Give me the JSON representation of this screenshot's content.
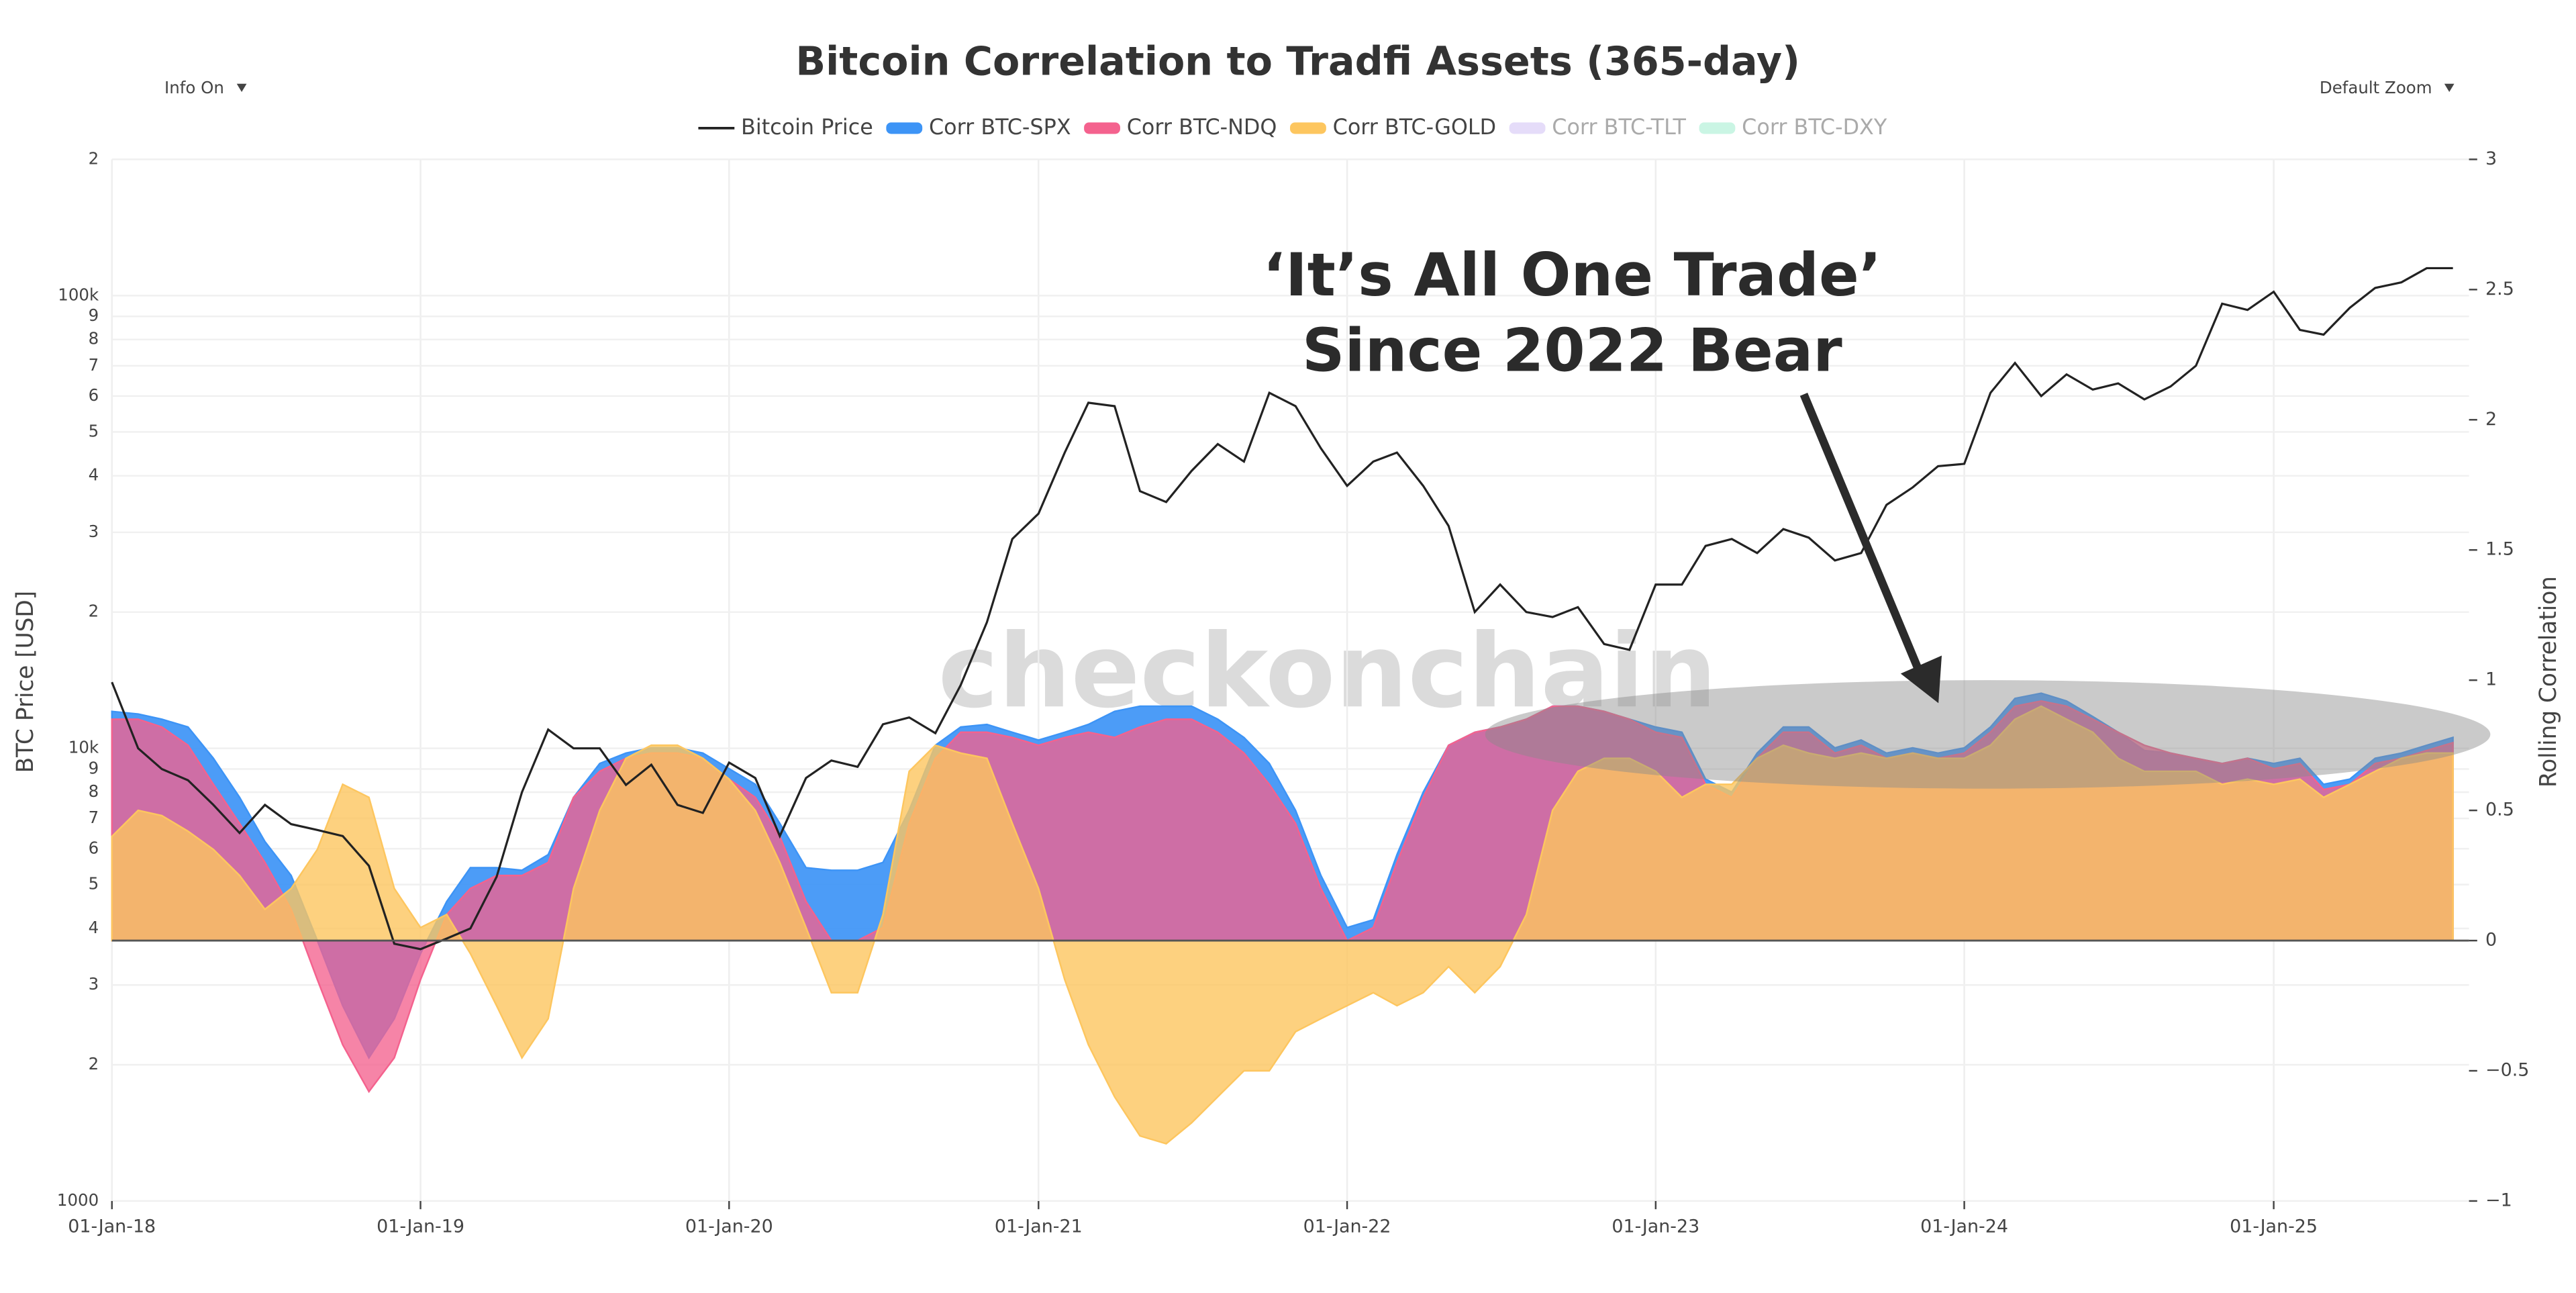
{
  "chart_data": {
    "type": "line-area",
    "title": "Bitcoin Correlation to Tradfi Assets (365-day)",
    "buttons": [
      "Info On",
      "Default Zoom"
    ],
    "y_label": "BTC Price [USD]",
    "y2_label": "Rolling Correlation",
    "watermark": "checkonchain",
    "annotation": [
      "‘It’s All One Trade’",
      "Since 2022 Bear"
    ],
    "ylog": true,
    "grid": true,
    "legend": "top",
    "xlim": [
      "2018-01-01",
      "2025-08-20"
    ],
    "xticks": [
      {
        "value": "2018-01-01",
        "label": "01-Jan-18"
      },
      {
        "value": "2019-01-01",
        "label": "01-Jan-19"
      },
      {
        "value": "2020-01-01",
        "label": "01-Jan-20"
      },
      {
        "value": "2021-01-01",
        "label": "01-Jan-21"
      },
      {
        "value": "2022-01-01",
        "label": "01-Jan-22"
      },
      {
        "value": "2023-01-01",
        "label": "01-Jan-23"
      },
      {
        "value": "2024-01-01",
        "label": "01-Jan-24"
      },
      {
        "value": "2025-01-01",
        "label": "01-Jan-25"
      }
    ],
    "ylim": [
      1000,
      200000
    ],
    "yticks": [
      1000,
      {
        "value": 2000,
        "label": "2"
      },
      {
        "value": 3000,
        "label": "3"
      },
      {
        "value": 4000,
        "label": "4"
      },
      {
        "value": 5000,
        "label": "5"
      },
      {
        "value": 6000,
        "label": "6"
      },
      {
        "value": 7000,
        "label": "7"
      },
      {
        "value": 8000,
        "label": "8"
      },
      {
        "value": 9000,
        "label": "9"
      },
      {
        "value": 10000,
        "label": "10k"
      },
      {
        "value": 20000,
        "label": "2"
      },
      {
        "value": 30000,
        "label": "3"
      },
      {
        "value": 40000,
        "label": "4"
      },
      {
        "value": 50000,
        "label": "5"
      },
      {
        "value": 60000,
        "label": "6"
      },
      {
        "value": 70000,
        "label": "7"
      },
      {
        "value": 80000,
        "label": "8"
      },
      {
        "value": 90000,
        "label": "9"
      },
      {
        "value": 100000,
        "label": "100k"
      },
      {
        "value": 200000,
        "label": "2"
      }
    ],
    "y2lim": [
      -1,
      3
    ],
    "y2ticks": [
      {
        "value": -1,
        "label": "−1"
      },
      {
        "value": -0.5,
        "label": "−0.5"
      },
      0,
      0.5,
      1,
      1.5,
      2,
      2.5,
      3
    ],
    "x": [
      "2018-01-01",
      "2018-02-01",
      "2018-03-01",
      "2018-04-01",
      "2018-05-01",
      "2018-06-01",
      "2018-07-01",
      "2018-08-01",
      "2018-09-01",
      "2018-10-01",
      "2018-11-01",
      "2018-12-01",
      "2019-01-01",
      "2019-02-01",
      "2019-03-01",
      "2019-04-01",
      "2019-05-01",
      "2019-06-01",
      "2019-07-01",
      "2019-08-01",
      "2019-09-01",
      "2019-10-01",
      "2019-11-01",
      "2019-12-01",
      "2020-01-01",
      "2020-02-01",
      "2020-03-01",
      "2020-04-01",
      "2020-05-01",
      "2020-06-01",
      "2020-07-01",
      "2020-08-01",
      "2020-09-01",
      "2020-10-01",
      "2020-11-01",
      "2020-12-01",
      "2021-01-01",
      "2021-02-01",
      "2021-03-01",
      "2021-04-01",
      "2021-05-01",
      "2021-06-01",
      "2021-07-01",
      "2021-08-01",
      "2021-09-01",
      "2021-10-01",
      "2021-11-01",
      "2021-12-01",
      "2022-01-01",
      "2022-02-01",
      "2022-03-01",
      "2022-04-01",
      "2022-05-01",
      "2022-06-01",
      "2022-07-01",
      "2022-08-01",
      "2022-09-01",
      "2022-10-01",
      "2022-11-01",
      "2022-12-01",
      "2023-01-01",
      "2023-02-01",
      "2023-03-01",
      "2023-04-01",
      "2023-05-01",
      "2023-06-01",
      "2023-07-01",
      "2023-08-01",
      "2023-09-01",
      "2023-10-01",
      "2023-11-01",
      "2023-12-01",
      "2024-01-01",
      "2024-02-01",
      "2024-03-01",
      "2024-04-01",
      "2024-05-01",
      "2024-06-01",
      "2024-07-01",
      "2024-08-01",
      "2024-09-01",
      "2024-10-01",
      "2024-11-01",
      "2024-12-01",
      "2025-01-01",
      "2025-02-01",
      "2025-03-01",
      "2025-04-01",
      "2025-05-01",
      "2025-06-01",
      "2025-07-01",
      "2025-08-01"
    ],
    "series": [
      {
        "name": "Bitcoin Price",
        "color": "#222222",
        "kind": "line",
        "values": [
          14000,
          10000,
          9000,
          8500,
          7500,
          6500,
          7500,
          6800,
          6600,
          6400,
          5500,
          3700,
          3600,
          3800,
          4000,
          5200,
          8000,
          11000,
          10000,
          10000,
          8300,
          9200,
          7500,
          7200,
          9300,
          8600,
          6400,
          8600,
          9400,
          9100,
          11300,
          11700,
          10800,
          13800,
          19000,
          29000,
          33000,
          45000,
          58000,
          57000,
          37000,
          35000,
          41000,
          47000,
          43000,
          61000,
          57000,
          46000,
          38000,
          43000,
          45000,
          38000,
          31000,
          20000,
          23000,
          20000,
          19500,
          20500,
          17000,
          16500,
          23000,
          23000,
          28000,
          29000,
          27000,
          30500,
          29200,
          26000,
          27000,
          34500,
          37700,
          42000,
          42500,
          61000,
          71000,
          60000,
          67000,
          62000,
          64000,
          59000,
          63000,
          70000,
          96000,
          93000,
          102000,
          84000,
          82000,
          94000,
          104000,
          107000,
          115000,
          115000
        ]
      },
      {
        "name": "Corr BTC-SPX",
        "color": "#3d94f6",
        "kind": "area",
        "axis": "y2",
        "values": [
          0.88,
          0.87,
          0.85,
          0.82,
          0.7,
          0.55,
          0.38,
          0.25,
          0.0,
          -0.25,
          -0.45,
          -0.3,
          -0.05,
          0.15,
          0.28,
          0.28,
          0.27,
          0.33,
          0.55,
          0.68,
          0.72,
          0.74,
          0.74,
          0.72,
          0.66,
          0.6,
          0.45,
          0.28,
          0.27,
          0.27,
          0.3,
          0.5,
          0.75,
          0.82,
          0.83,
          0.8,
          0.77,
          0.8,
          0.83,
          0.88,
          0.9,
          0.9,
          0.9,
          0.85,
          0.78,
          0.68,
          0.5,
          0.25,
          0.05,
          0.08,
          0.33,
          0.57,
          0.75,
          0.8,
          0.82,
          0.85,
          0.9,
          0.9,
          0.88,
          0.85,
          0.82,
          0.8,
          0.62,
          0.57,
          0.72,
          0.82,
          0.82,
          0.74,
          0.77,
          0.72,
          0.74,
          0.72,
          0.74,
          0.82,
          0.93,
          0.95,
          0.92,
          0.86,
          0.8,
          0.73,
          0.72,
          0.7,
          0.68,
          0.7,
          0.68,
          0.7,
          0.6,
          0.62,
          0.7,
          0.72,
          0.75,
          0.78
        ]
      },
      {
        "name": "Corr BTC-NDQ",
        "color": "#f4628e",
        "kind": "area",
        "axis": "y2",
        "values": [
          0.85,
          0.85,
          0.82,
          0.75,
          0.6,
          0.45,
          0.3,
          0.12,
          -0.15,
          -0.4,
          -0.58,
          -0.45,
          -0.15,
          0.1,
          0.2,
          0.25,
          0.25,
          0.3,
          0.55,
          0.65,
          0.7,
          0.72,
          0.72,
          0.7,
          0.62,
          0.55,
          0.4,
          0.15,
          0.0,
          0.0,
          0.05,
          0.45,
          0.7,
          0.8,
          0.8,
          0.78,
          0.75,
          0.78,
          0.8,
          0.78,
          0.82,
          0.85,
          0.85,
          0.8,
          0.72,
          0.6,
          0.45,
          0.2,
          0.0,
          0.05,
          0.3,
          0.55,
          0.75,
          0.8,
          0.82,
          0.85,
          0.9,
          0.9,
          0.88,
          0.85,
          0.8,
          0.78,
          0.6,
          0.55,
          0.7,
          0.8,
          0.8,
          0.72,
          0.75,
          0.7,
          0.72,
          0.7,
          0.72,
          0.8,
          0.9,
          0.92,
          0.9,
          0.85,
          0.8,
          0.75,
          0.72,
          0.7,
          0.68,
          0.7,
          0.66,
          0.68,
          0.58,
          0.6,
          0.68,
          0.7,
          0.73,
          0.76
        ]
      },
      {
        "name": "Corr BTC-GOLD",
        "color": "#fdc65f",
        "kind": "area",
        "axis": "y2",
        "values": [
          0.4,
          0.5,
          0.48,
          0.42,
          0.35,
          0.25,
          0.12,
          0.2,
          0.35,
          0.6,
          0.55,
          0.2,
          0.05,
          0.1,
          -0.05,
          -0.25,
          -0.45,
          -0.3,
          0.2,
          0.5,
          0.7,
          0.75,
          0.75,
          0.7,
          0.62,
          0.5,
          0.3,
          0.05,
          -0.2,
          -0.2,
          0.1,
          0.65,
          0.75,
          0.72,
          0.7,
          0.45,
          0.2,
          -0.15,
          -0.4,
          -0.6,
          -0.75,
          -0.78,
          -0.7,
          -0.6,
          -0.5,
          -0.5,
          -0.35,
          -0.3,
          -0.25,
          -0.2,
          -0.25,
          -0.2,
          -0.1,
          -0.2,
          -0.1,
          0.1,
          0.5,
          0.65,
          0.7,
          0.7,
          0.65,
          0.55,
          0.6,
          0.6,
          0.7,
          0.75,
          0.72,
          0.7,
          0.72,
          0.7,
          0.72,
          0.7,
          0.7,
          0.75,
          0.85,
          0.9,
          0.85,
          0.8,
          0.7,
          0.65,
          0.65,
          0.65,
          0.6,
          0.62,
          0.6,
          0.62,
          0.55,
          0.6,
          0.65,
          0.7,
          0.72,
          0.72
        ]
      },
      {
        "name": "Corr BTC-TLT",
        "color": "#d4c4f5",
        "kind": "area",
        "axis": "y2",
        "visible": false
      },
      {
        "name": "Corr BTC-DXY",
        "color": "#a6efd2",
        "kind": "area",
        "axis": "y2",
        "visible": false
      }
    ]
  }
}
